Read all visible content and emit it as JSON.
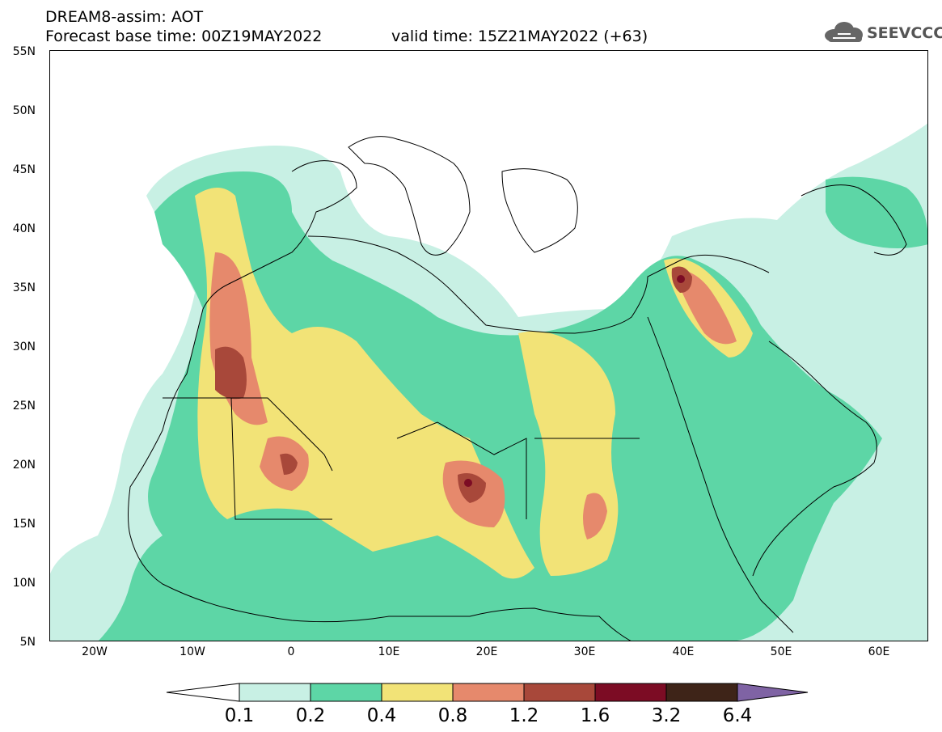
{
  "header": {
    "line1": "DREAM8-assim: AOT",
    "line2": "Forecast base time: 00Z19MAY2022",
    "line3": "valid time: 15Z21MAY2022 (+63)"
  },
  "logo": {
    "text": "SEEVCCC",
    "icon": "cloud-icon"
  },
  "map": {
    "lat_labels": [
      "55N",
      "50N",
      "45N",
      "40N",
      "35N",
      "30N",
      "25N",
      "20N",
      "15N",
      "10N",
      "5N"
    ],
    "lon_labels": [
      "20W",
      "10W",
      "0",
      "10E",
      "20E",
      "30E",
      "40E",
      "50E",
      "60E"
    ],
    "lat_range": [
      5,
      55
    ],
    "lon_range": [
      -25,
      65
    ]
  },
  "legend": {
    "thresholds": [
      "0.1",
      "0.2",
      "0.4",
      "0.8",
      "1.2",
      "1.6",
      "3.2",
      "6.4"
    ],
    "colors": [
      "#c8f0e4",
      "#5dd6a6",
      "#f2e377",
      "#e6896c",
      "#a8483a",
      "#7c0c24",
      "#3e2418",
      "#7f63a4"
    ]
  }
}
